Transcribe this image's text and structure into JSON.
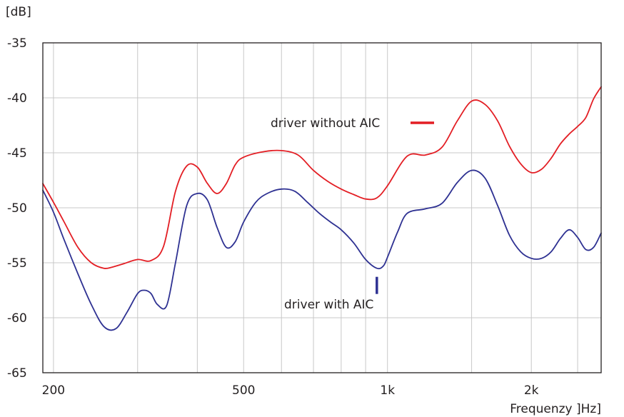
{
  "chart_data": {
    "type": "line",
    "ylabel": "[dB]",
    "xlabel": "Frequenzy ]Hz]",
    "x_scale": "log",
    "xlim": [
      190,
      2800
    ],
    "ylim": [
      -65,
      -35
    ],
    "y_ticks": [
      -35,
      -40,
      -45,
      -50,
      -55,
      -60,
      -65
    ],
    "y_tick_labels": [
      "-35",
      "-40",
      "-45",
      "-50",
      "-55",
      "-60",
      "-65"
    ],
    "x_ticks": [
      200,
      500,
      1000,
      2000
    ],
    "x_tick_labels": [
      "200",
      "500",
      "1k",
      "2k"
    ],
    "x_minor_grid": [
      300,
      400,
      600,
      700,
      800,
      900,
      1500,
      2500
    ],
    "grid": true,
    "series": [
      {
        "name": "driver without AIC",
        "color": "#e31e24",
        "x": [
          190,
          200,
          210,
          225,
          240,
          255,
          265,
          280,
          300,
          320,
          340,
          360,
          380,
          400,
          420,
          440,
          460,
          480,
          500,
          550,
          600,
          650,
          700,
          750,
          800,
          850,
          900,
          950,
          1000,
          1100,
          1200,
          1300,
          1400,
          1500,
          1600,
          1700,
          1800,
          1900,
          2000,
          2100,
          2200,
          2300,
          2400,
          2500,
          2600,
          2700,
          2800
        ],
        "y": [
          -47.8,
          -49.5,
          -51.2,
          -53.6,
          -55.0,
          -55.5,
          -55.4,
          -55.1,
          -54.7,
          -54.8,
          -53.5,
          -48.5,
          -46.2,
          -46.3,
          -47.8,
          -48.7,
          -47.8,
          -46.1,
          -45.4,
          -44.9,
          -44.8,
          -45.2,
          -46.6,
          -47.6,
          -48.3,
          -48.8,
          -49.2,
          -49.1,
          -48.0,
          -45.3,
          -45.2,
          -44.5,
          -42.1,
          -40.3,
          -40.6,
          -42.1,
          -44.4,
          -46.0,
          -46.8,
          -46.5,
          -45.5,
          -44.2,
          -43.3,
          -42.6,
          -41.8,
          -40.1,
          -39.0
        ]
      },
      {
        "name": "driver with AIC",
        "color": "#2e3192",
        "x": [
          190,
          200,
          210,
          225,
          240,
          255,
          270,
          285,
          300,
          310,
          320,
          330,
          345,
          360,
          380,
          400,
          420,
          440,
          460,
          480,
          500,
          530,
          560,
          600,
          640,
          680,
          720,
          760,
          800,
          850,
          900,
          950,
          980,
          1000,
          1050,
          1100,
          1200,
          1300,
          1400,
          1500,
          1600,
          1700,
          1800,
          1900,
          2000,
          2100,
          2200,
          2300,
          2400,
          2500,
          2600,
          2700,
          2800
        ],
        "y": [
          -48.4,
          -50.4,
          -52.8,
          -56.0,
          -58.8,
          -60.8,
          -61.0,
          -59.5,
          -57.8,
          -57.5,
          -57.8,
          -58.8,
          -58.9,
          -55.0,
          -49.8,
          -48.7,
          -49.3,
          -51.8,
          -53.6,
          -53.1,
          -51.3,
          -49.5,
          -48.7,
          -48.3,
          -48.5,
          -49.5,
          -50.5,
          -51.3,
          -52.0,
          -53.2,
          -54.7,
          -55.5,
          -55.3,
          -54.5,
          -52.2,
          -50.5,
          -50.1,
          -49.6,
          -47.7,
          -46.6,
          -47.3,
          -49.8,
          -52.5,
          -54.0,
          -54.6,
          -54.6,
          -54.0,
          -52.8,
          -52.0,
          -52.7,
          -53.8,
          -53.6,
          -52.3
        ]
      }
    ],
    "annotations": [
      {
        "text": "driver without AIC",
        "series": 0,
        "marker": "legend-line"
      },
      {
        "text": "driver with AIC",
        "series": 1,
        "marker": "pointer",
        "x": 950,
        "y": -55.5
      }
    ]
  }
}
